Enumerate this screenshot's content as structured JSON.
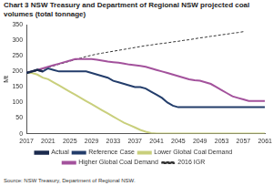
{
  "chart_data": {
    "type": "line",
    "title": "Chart 3 NSW Treasury and Department of Regional NSW projected coal volumes (total tonnage)",
    "ylabel": "Mt",
    "source": "Source: NSW Treasury, Department of Regional NSW.",
    "x": [
      2017,
      2018,
      2019,
      2020,
      2021,
      2022,
      2023,
      2024,
      2025,
      2026,
      2027,
      2028,
      2029,
      2030,
      2031,
      2032,
      2033,
      2034,
      2035,
      2036,
      2037,
      2038,
      2039,
      2040,
      2041,
      2042,
      2043,
      2044,
      2045,
      2046,
      2047,
      2048,
      2049,
      2050,
      2051,
      2052,
      2053,
      2054,
      2055,
      2056,
      2057,
      2058,
      2059,
      2060,
      2061
    ],
    "series": [
      {
        "name": "Actual",
        "color": "#1b2a4e",
        "line_style": "solid",
        "values": [
          195,
          200,
          205,
          200,
          null,
          null,
          null,
          null,
          null,
          null,
          null,
          null,
          null,
          null,
          null,
          null,
          null,
          null,
          null,
          null,
          null,
          null,
          null,
          null,
          null,
          null,
          null,
          null,
          null,
          null,
          null,
          null,
          null,
          null,
          null,
          null,
          null,
          null,
          null,
          null,
          null,
          null,
          null,
          null,
          null
        ]
      },
      {
        "name": "Reference Case",
        "color": "#233d6b",
        "line_style": "solid",
        "values": [
          195,
          200,
          205,
          200,
          210,
          205,
          200,
          200,
          200,
          200,
          200,
          200,
          195,
          190,
          185,
          180,
          170,
          165,
          160,
          155,
          150,
          150,
          145,
          135,
          125,
          115,
          100,
          90,
          85,
          85,
          85,
          85,
          85,
          85,
          85,
          85,
          85,
          85,
          85,
          85,
          85,
          85,
          85,
          85,
          85
        ]
      },
      {
        "name": "Lower Global Coal Demand",
        "color": "#c9cf7c",
        "line_style": "solid",
        "values": [
          195,
          195,
          190,
          180,
          175,
          165,
          155,
          145,
          135,
          125,
          115,
          105,
          95,
          85,
          75,
          65,
          55,
          45,
          35,
          28,
          20,
          12,
          6,
          2,
          0,
          0,
          0,
          0,
          0,
          0,
          0,
          0,
          0,
          0,
          0,
          0,
          0,
          0,
          0,
          0,
          0,
          0,
          0,
          0,
          0
        ]
      },
      {
        "name": "Higher Global Coal Demand",
        "color": "#a3529c",
        "line_style": "solid",
        "values": [
          195,
          200,
          205,
          210,
          215,
          220,
          225,
          230,
          235,
          240,
          240,
          240,
          240,
          238,
          235,
          232,
          230,
          228,
          225,
          222,
          220,
          218,
          215,
          210,
          205,
          200,
          195,
          190,
          185,
          180,
          175,
          172,
          170,
          165,
          160,
          150,
          140,
          130,
          120,
          115,
          110,
          105,
          105,
          105,
          105
        ]
      },
      {
        "name": "2016 IGR",
        "color": "#333333",
        "line_style": "dashed",
        "values": [
          195,
          199,
          203,
          208,
          213,
          218,
          223,
          228,
          233,
          238,
          243,
          248,
          252,
          256,
          259,
          262,
          265,
          268,
          271,
          274,
          277,
          280,
          283,
          285,
          288,
          290,
          292,
          295,
          297,
          300,
          302,
          305,
          308,
          310,
          313,
          315,
          318,
          320,
          323,
          325,
          328,
          null,
          null,
          null,
          null
        ]
      }
    ],
    "xlim": [
      2017,
      2061
    ],
    "xticks": [
      2017,
      2021,
      2025,
      2029,
      2033,
      2037,
      2041,
      2045,
      2049,
      2053,
      2057,
      2061
    ],
    "ylim": [
      0,
      350
    ],
    "yticks": [
      0,
      50,
      100,
      150,
      200,
      250,
      300,
      350
    ],
    "grid": false,
    "legend": "bottom"
  }
}
